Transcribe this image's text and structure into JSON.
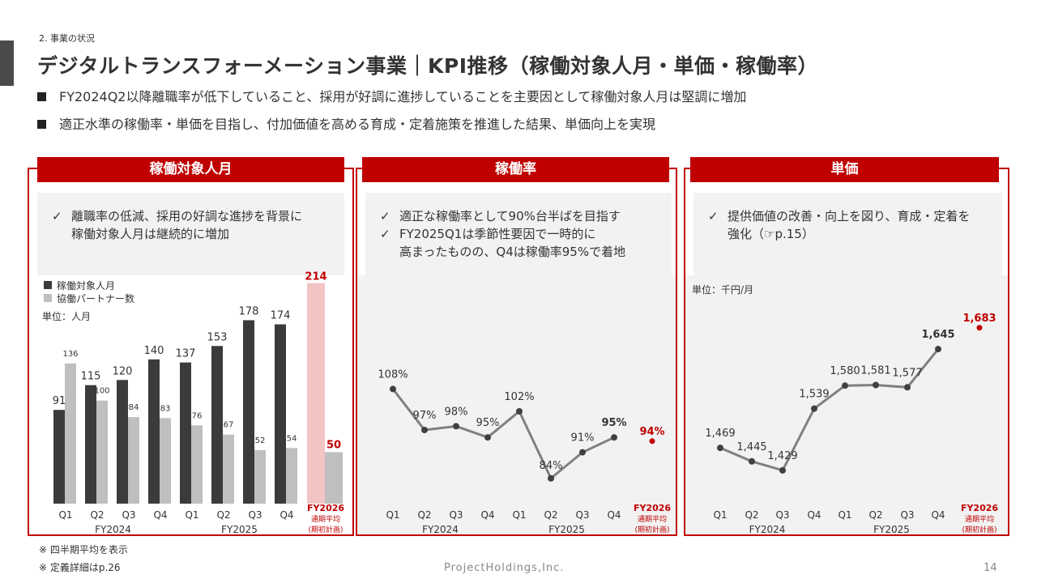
{
  "header": {
    "section": "2. 事業の状況",
    "title": "デジタルトランスフォーメーション事業｜KPI推移（稼働対象人月・単価・稼働率）",
    "bullets": [
      "FY2024Q2以降離職率が低下していること、採用が好調に進捗していることを主要因として稼働対象人月は堅調に増加",
      "適正水準の稼働率・単価を目指し、付加価値を高める育成・定着施策を推進した結果、単価向上を実現"
    ]
  },
  "colors": {
    "accent": "#c00000",
    "dark_bar": "#3b3b3b",
    "light_bar": "#bfbfbf",
    "forecast_bar": "#f2c4c4",
    "line": "#808080",
    "point": "#404040"
  },
  "panels": {
    "man_months": {
      "title": "稼働対象人月",
      "note": [
        "離職率の低減、採用の好調な進捗を背景に",
        "稼働対象人月は継続的に増加"
      ],
      "legend": [
        "稼働対象人月",
        "協働パートナー数"
      ],
      "unit": "単位：人月"
    },
    "utilization": {
      "title": "稼働率",
      "note": [
        "適正な稼働率として90%台半ばを目指す",
        "FY2025Q1は季節性要因で一時的に",
        "高まったものの、Q4は稼働率95%で着地"
      ]
    },
    "unit_price": {
      "title": "単価",
      "note": [
        "提供価値の改善・向上を図り、育成・定着を",
        "強化（☞p.15）"
      ],
      "unit": "単位：千円/月"
    }
  },
  "footer": {
    "notes": [
      "※ 四半期平均を表示",
      "※ 定義詳細はp.26"
    ],
    "company": "ProjectHoldings,Inc.",
    "page": "14"
  },
  "chart_data": [
    {
      "type": "bar",
      "title": "稼働対象人月",
      "categories": [
        "Q1",
        "Q2",
        "Q3",
        "Q4",
        "Q1",
        "Q2",
        "Q3",
        "Q4"
      ],
      "groups": [
        "FY2024",
        "FY2025"
      ],
      "series": [
        {
          "name": "稼働対象人月",
          "values": [
            91,
            115,
            120,
            140,
            137,
            153,
            178,
            174
          ]
        },
        {
          "name": "協働パートナー数",
          "values": [
            136,
            100,
            84,
            83,
            76,
            67,
            52,
            54
          ]
        }
      ],
      "forecast": {
        "label": "FY2026",
        "sublabel": [
          "通期平均",
          "(期初計画)"
        ],
        "values": [
          214,
          50
        ]
      },
      "ylim": [
        0,
        220
      ]
    },
    {
      "type": "line",
      "title": "稼働率",
      "categories": [
        "Q1",
        "Q2",
        "Q3",
        "Q4",
        "Q1",
        "Q2",
        "Q3",
        "Q4"
      ],
      "groups": [
        "FY2024",
        "FY2025"
      ],
      "values": [
        108,
        97,
        98,
        95,
        102,
        84,
        91,
        95
      ],
      "labels": [
        "108%",
        "97%",
        "98%",
        "95%",
        "102%",
        "84%",
        "91%",
        "95%"
      ],
      "forecast": {
        "label": "FY2026",
        "sublabel": [
          "通期平均",
          "(期初計画)"
        ],
        "value": 94,
        "value_label": "94%"
      },
      "ylim": [
        82,
        112
      ]
    },
    {
      "type": "line",
      "title": "単価",
      "categories": [
        "Q1",
        "Q2",
        "Q3",
        "Q4",
        "Q1",
        "Q2",
        "Q3",
        "Q4"
      ],
      "groups": [
        "FY2024",
        "FY2025"
      ],
      "values": [
        1469,
        1445,
        1429,
        1539,
        1580,
        1581,
        1577,
        1645
      ],
      "labels": [
        "1,469",
        "1,445",
        "1,429",
        "1,539",
        "1,580",
        "1,581",
        "1,577",
        "1,645"
      ],
      "forecast": {
        "label": "FY2026",
        "sublabel": [
          "通期平均",
          "(期初計画)"
        ],
        "value": 1683,
        "value_label": "1,683"
      },
      "ylim": [
        1400,
        1700
      ]
    }
  ]
}
